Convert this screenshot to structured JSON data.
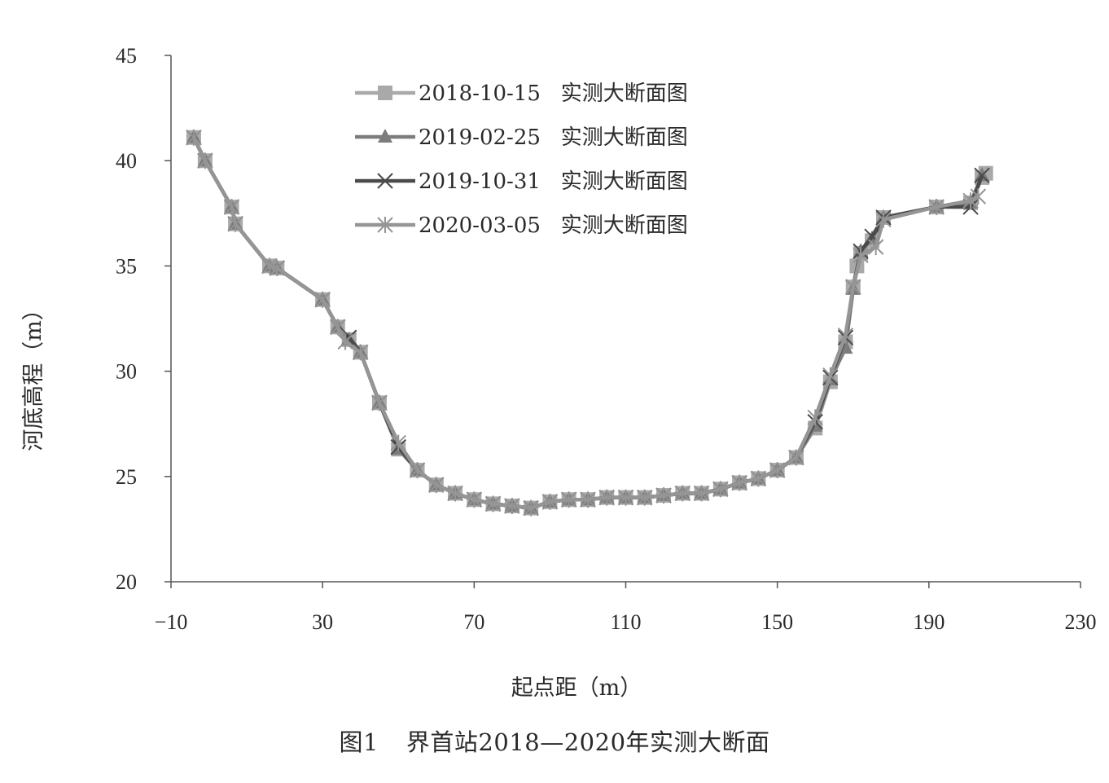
{
  "chart_data": {
    "type": "line",
    "caption": {
      "figure_number": "图1",
      "text": "界首站2018—2020年实测大断面"
    },
    "xlabel": "起点距（m）",
    "ylabel": "河底高程（m）",
    "xlim": [
      -10,
      230
    ],
    "ylim": [
      20,
      45
    ],
    "x_ticks": [
      -10,
      30,
      70,
      110,
      150,
      190,
      230
    ],
    "x_tick_labels": [
      "−10",
      "30",
      "70",
      "110",
      "150",
      "190",
      "230"
    ],
    "y_ticks": [
      20,
      25,
      30,
      35,
      40,
      45
    ],
    "y_tick_labels": [
      "20",
      "25",
      "30",
      "35",
      "40",
      "45"
    ],
    "legend_position": "top-center",
    "series": [
      {
        "name": "2018-10-15   实测大断面图",
        "marker": "square",
        "color": "#a9a9a9",
        "points": [
          [
            -4,
            41.1
          ],
          [
            -1,
            40
          ],
          [
            6,
            37.8
          ],
          [
            7,
            37
          ],
          [
            16,
            35
          ],
          [
            18,
            34.9
          ],
          [
            30,
            33.4
          ],
          [
            34,
            32.1
          ],
          [
            37,
            31.5
          ],
          [
            40,
            30.9
          ],
          [
            45,
            28.5
          ],
          [
            50,
            26.3
          ],
          [
            55,
            25.3
          ],
          [
            60,
            24.6
          ],
          [
            65,
            24.2
          ],
          [
            70,
            23.9
          ],
          [
            75,
            23.7
          ],
          [
            80,
            23.6
          ],
          [
            85,
            23.5
          ],
          [
            90,
            23.8
          ],
          [
            95,
            23.9
          ],
          [
            100,
            23.9
          ],
          [
            105,
            24
          ],
          [
            110,
            24
          ],
          [
            115,
            24
          ],
          [
            120,
            24.1
          ],
          [
            125,
            24.2
          ],
          [
            130,
            24.2
          ],
          [
            135,
            24.4
          ],
          [
            140,
            24.7
          ],
          [
            145,
            24.9
          ],
          [
            150,
            25.3
          ],
          [
            155,
            25.9
          ],
          [
            160,
            27.3
          ],
          [
            164,
            29.5
          ],
          [
            168,
            31.4
          ],
          [
            170,
            34
          ],
          [
            171,
            35
          ],
          [
            172,
            35.6
          ],
          [
            175,
            36.2
          ],
          [
            178,
            37.3
          ],
          [
            192,
            37.8
          ],
          [
            201,
            38
          ],
          [
            204,
            39.2
          ],
          [
            205,
            39.4
          ]
        ]
      },
      {
        "name": "2019-02-25   实测大断面图",
        "marker": "triangle",
        "color": "#7c7c7c",
        "points": [
          [
            -4,
            41.1
          ],
          [
            -1,
            40
          ],
          [
            6,
            37.8
          ],
          [
            7,
            37
          ],
          [
            16,
            35
          ],
          [
            18,
            34.9
          ],
          [
            30,
            33.4
          ],
          [
            34,
            32.1
          ],
          [
            37,
            31.5
          ],
          [
            40,
            30.9
          ],
          [
            45,
            28.5
          ],
          [
            50,
            26.3
          ],
          [
            55,
            25.3
          ],
          [
            60,
            24.6
          ],
          [
            65,
            24.2
          ],
          [
            70,
            23.9
          ],
          [
            75,
            23.7
          ],
          [
            80,
            23.6
          ],
          [
            85,
            23.5
          ],
          [
            90,
            23.8
          ],
          [
            95,
            23.9
          ],
          [
            100,
            23.9
          ],
          [
            105,
            24
          ],
          [
            110,
            24
          ],
          [
            115,
            24
          ],
          [
            120,
            24.1
          ],
          [
            125,
            24.2
          ],
          [
            130,
            24.2
          ],
          [
            135,
            24.4
          ],
          [
            140,
            24.7
          ],
          [
            145,
            24.9
          ],
          [
            150,
            25.3
          ],
          [
            155,
            25.9
          ],
          [
            160,
            27.4
          ],
          [
            164,
            29.6
          ],
          [
            168,
            31.1
          ],
          [
            170,
            33.9
          ],
          [
            172,
            35.7
          ],
          [
            175,
            36.3
          ],
          [
            178,
            37.3
          ],
          [
            192,
            37.8
          ],
          [
            201,
            38
          ],
          [
            204,
            39.3
          ]
        ]
      },
      {
        "name": "2019-10-31   实测大断面图",
        "marker": "x",
        "color": "#4a4a4a",
        "points": [
          [
            -4,
            41.1
          ],
          [
            -1,
            40
          ],
          [
            6,
            37.8
          ],
          [
            7,
            37
          ],
          [
            16,
            35
          ],
          [
            18,
            34.9
          ],
          [
            30,
            33.4
          ],
          [
            34,
            32.1
          ],
          [
            37,
            31.6
          ],
          [
            40,
            30.9
          ],
          [
            45,
            28.5
          ],
          [
            50,
            26.4
          ],
          [
            55,
            25.3
          ],
          [
            60,
            24.6
          ],
          [
            65,
            24.2
          ],
          [
            70,
            23.9
          ],
          [
            75,
            23.7
          ],
          [
            80,
            23.6
          ],
          [
            85,
            23.5
          ],
          [
            90,
            23.8
          ],
          [
            95,
            23.9
          ],
          [
            100,
            23.9
          ],
          [
            105,
            24
          ],
          [
            110,
            24
          ],
          [
            115,
            24
          ],
          [
            120,
            24.1
          ],
          [
            125,
            24.2
          ],
          [
            130,
            24.2
          ],
          [
            135,
            24.4
          ],
          [
            140,
            24.7
          ],
          [
            145,
            24.9
          ],
          [
            150,
            25.3
          ],
          [
            155,
            25.9
          ],
          [
            160,
            27.6
          ],
          [
            164,
            29.7
          ],
          [
            168,
            31.6
          ],
          [
            170,
            34
          ],
          [
            172,
            35.7
          ],
          [
            175,
            36.4
          ],
          [
            178,
            37.3
          ],
          [
            192,
            37.8
          ],
          [
            201,
            37.8
          ],
          [
            204,
            39.3
          ]
        ]
      },
      {
        "name": "2020-03-05   实测大断面图",
        "marker": "asterisk",
        "color": "#959595",
        "points": [
          [
            -4,
            41.1
          ],
          [
            -1,
            40
          ],
          [
            6,
            37.8
          ],
          [
            7,
            37
          ],
          [
            16,
            35
          ],
          [
            18,
            34.9
          ],
          [
            30,
            33.4
          ],
          [
            34,
            32.1
          ],
          [
            36,
            31.4
          ],
          [
            40,
            30.9
          ],
          [
            45,
            28.5
          ],
          [
            50,
            26.6
          ],
          [
            55,
            25.3
          ],
          [
            60,
            24.6
          ],
          [
            65,
            24.2
          ],
          [
            70,
            23.9
          ],
          [
            75,
            23.7
          ],
          [
            80,
            23.6
          ],
          [
            85,
            23.5
          ],
          [
            90,
            23.8
          ],
          [
            95,
            23.9
          ],
          [
            100,
            23.9
          ],
          [
            105,
            24
          ],
          [
            110,
            24
          ],
          [
            115,
            24
          ],
          [
            120,
            24.1
          ],
          [
            125,
            24.2
          ],
          [
            130,
            24.2
          ],
          [
            135,
            24.4
          ],
          [
            140,
            24.7
          ],
          [
            145,
            24.9
          ],
          [
            150,
            25.3
          ],
          [
            155,
            25.9
          ],
          [
            160,
            27.8
          ],
          [
            164,
            29.8
          ],
          [
            168,
            31.7
          ],
          [
            170,
            34
          ],
          [
            172,
            35.5
          ],
          [
            176,
            35.9
          ],
          [
            178,
            37.2
          ],
          [
            192,
            37.8
          ],
          [
            201,
            38.1
          ],
          [
            203,
            38.3
          ]
        ]
      }
    ]
  }
}
